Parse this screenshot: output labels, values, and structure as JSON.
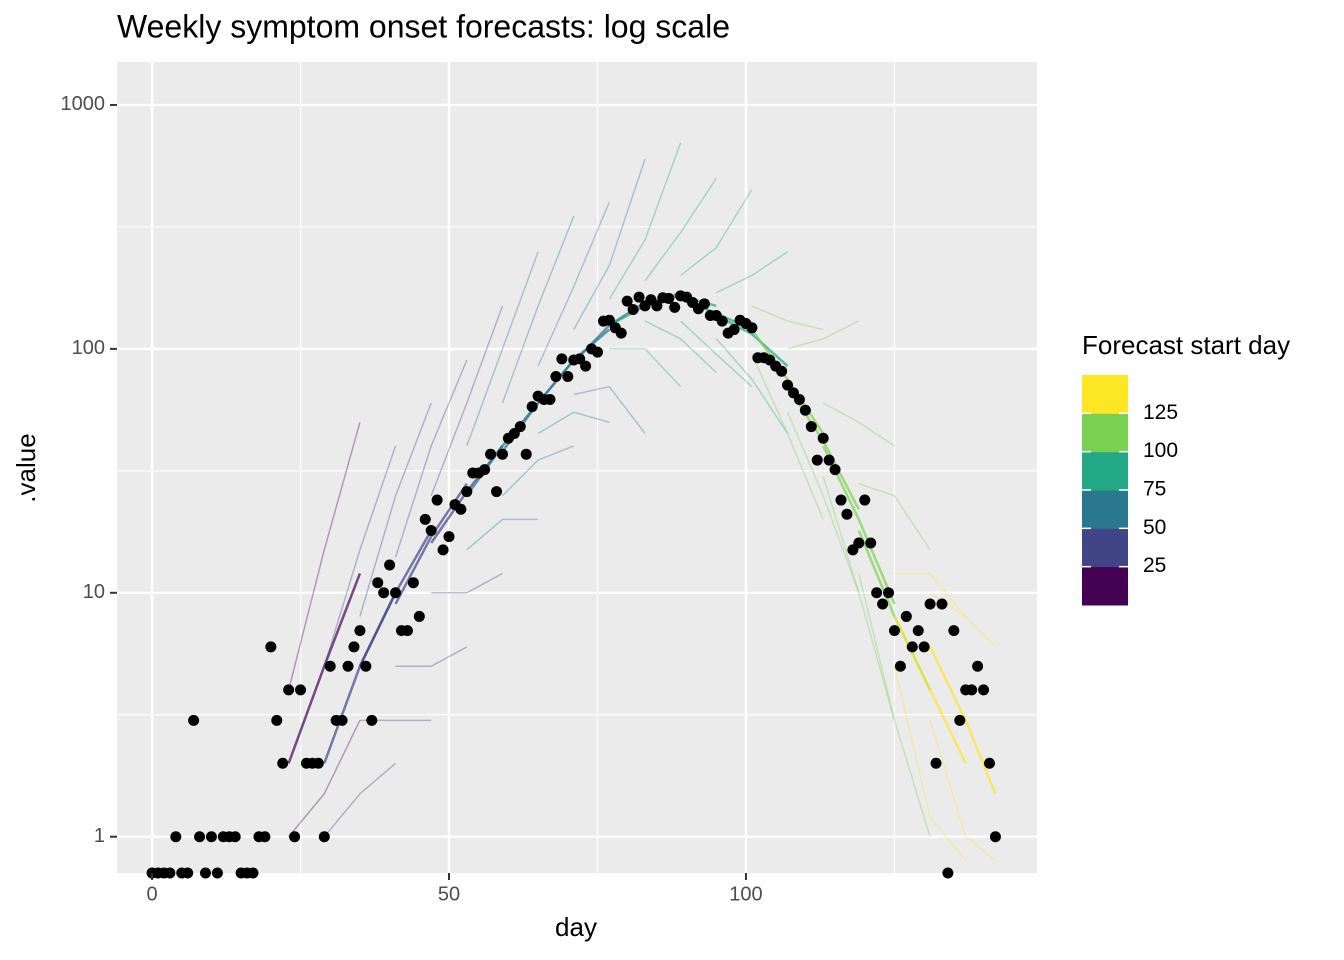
{
  "chart_data": {
    "type": "scatter",
    "title": "Weekly symptom onset forecasts: log scale",
    "x_label": "day",
    "y_label": ".value",
    "ylog": true,
    "grid": true,
    "xlim": [
      -5.9,
      149
    ],
    "ylim": [
      0.71,
      1500
    ],
    "xticks": [
      0,
      50,
      100
    ],
    "xminor": [
      25,
      75,
      125
    ],
    "yticks": [
      1,
      10,
      100,
      1000
    ],
    "yminor": [
      3.162,
      31.62,
      316.2
    ],
    "point_color": "#000000",
    "x": [
      0,
      1,
      2,
      3,
      4,
      5,
      6,
      7,
      8,
      9,
      10,
      11,
      12,
      13,
      14,
      15,
      16,
      17,
      18,
      19,
      20,
      21,
      22,
      23,
      24,
      25,
      26,
      27,
      28,
      29,
      30,
      31,
      32,
      33,
      34,
      35,
      36,
      37,
      38,
      39,
      40,
      41,
      42,
      43,
      44,
      45,
      46,
      47,
      48,
      49,
      50,
      51,
      52,
      53,
      54,
      55,
      56,
      57,
      58,
      59,
      60,
      61,
      62,
      63,
      64,
      65,
      66,
      67,
      68,
      69,
      70,
      71,
      72,
      73,
      74,
      75,
      76,
      77,
      78,
      79,
      80,
      81,
      82,
      83,
      84,
      85,
      86,
      87,
      88,
      89,
      90,
      91,
      92,
      93,
      94,
      95,
      96,
      97,
      98,
      99,
      100,
      101,
      102,
      103,
      104,
      105,
      106,
      107,
      108,
      109,
      110,
      111,
      112,
      113,
      114,
      115,
      116,
      117,
      118,
      119,
      120,
      121,
      122,
      123,
      124,
      125,
      126,
      127,
      128,
      129,
      130,
      131,
      132,
      133,
      134,
      135,
      136,
      137,
      138,
      139,
      140,
      141,
      142
    ],
    "values": [
      0,
      0,
      0,
      0,
      1,
      0,
      0,
      3,
      1,
      0,
      1,
      0,
      1,
      1,
      1,
      0,
      0,
      0,
      1,
      1,
      6,
      3,
      2,
      4,
      1,
      4,
      2,
      2,
      2,
      1,
      5,
      3,
      3,
      5,
      6,
      7,
      5,
      3,
      11,
      10,
      13,
      10,
      7,
      7,
      11,
      8,
      20,
      18,
      24,
      15,
      17,
      23,
      22,
      26,
      31,
      31,
      32,
      37,
      26,
      37,
      43,
      45,
      48,
      37,
      58,
      64,
      62,
      62,
      77,
      91,
      77,
      90,
      91,
      85,
      100,
      97,
      130,
      131,
      122,
      116,
      157,
      145,
      163,
      150,
      159,
      150,
      162,
      161,
      148,
      165,
      163,
      155,
      146,
      153,
      137,
      137,
      130,
      116,
      120,
      131,
      127,
      122,
      92,
      92,
      90,
      85,
      81,
      71,
      66,
      62,
      56,
      48,
      35,
      43,
      35,
      32,
      24,
      21,
      15,
      16,
      24,
      16,
      10,
      9,
      10,
      7,
      5,
      8,
      6,
      7,
      6,
      9,
      2,
      9,
      0,
      7,
      3,
      4,
      4,
      5,
      4,
      2,
      1
    ],
    "colorbar": {
      "title": "Forecast start day",
      "breaks": [
        25,
        50,
        75,
        100,
        125
      ],
      "colors": [
        "#440154",
        "#414487",
        "#2A788E",
        "#22A884",
        "#7AD151",
        "#FDE725"
      ]
    },
    "forecasts": [
      {
        "start": 23,
        "x": [
          23,
          29,
          35
        ],
        "low": [
          1,
          1.5,
          3
        ],
        "median": [
          2,
          5,
          12
        ],
        "high": [
          4,
          15,
          50
        ]
      },
      {
        "start": 29,
        "x": [
          29,
          35,
          41
        ],
        "low": [
          1,
          1.5,
          2
        ],
        "median": [
          2,
          5,
          10
        ],
        "high": [
          5,
          15,
          40
        ]
      },
      {
        "start": 35,
        "x": [
          35,
          41,
          47
        ],
        "low": [
          3,
          3,
          3
        ],
        "median": [
          5,
          10,
          18
        ],
        "high": [
          8,
          25,
          60
        ]
      },
      {
        "start": 41,
        "x": [
          41,
          47,
          53
        ],
        "low": [
          5,
          5,
          6
        ],
        "median": [
          9,
          17,
          28
        ],
        "high": [
          14,
          40,
          90
        ]
      },
      {
        "start": 47,
        "x": [
          47,
          53,
          59
        ],
        "low": [
          10,
          10,
          12
        ],
        "median": [
          16,
          26,
          40
        ],
        "high": [
          25,
          60,
          150
        ]
      },
      {
        "start": 53,
        "x": [
          53,
          59,
          65
        ],
        "low": [
          15,
          20,
          20
        ],
        "median": [
          25,
          40,
          60
        ],
        "high": [
          40,
          100,
          250
        ]
      },
      {
        "start": 59,
        "x": [
          59,
          65,
          71
        ],
        "low": [
          25,
          35,
          40
        ],
        "median": [
          38,
          60,
          90
        ],
        "high": [
          60,
          150,
          350
        ]
      },
      {
        "start": 65,
        "x": [
          65,
          71,
          77
        ],
        "low": [
          45,
          55,
          50
        ],
        "median": [
          60,
          90,
          120
        ],
        "high": [
          85,
          180,
          400
        ]
      },
      {
        "start": 71,
        "x": [
          71,
          77,
          83
        ],
        "low": [
          65,
          70,
          45
        ],
        "median": [
          88,
          125,
          155
        ],
        "high": [
          120,
          220,
          600
        ]
      },
      {
        "start": 77,
        "x": [
          77,
          83,
          89
        ],
        "low": [
          100,
          100,
          70
        ],
        "median": [
          125,
          150,
          170
        ],
        "high": [
          160,
          280,
          700
        ]
      },
      {
        "start": 83,
        "x": [
          83,
          89,
          95
        ],
        "low": [
          130,
          110,
          80
        ],
        "median": [
          155,
          165,
          150
        ],
        "high": [
          190,
          300,
          500
        ]
      },
      {
        "start": 89,
        "x": [
          89,
          95,
          101
        ],
        "low": [
          130,
          95,
          70
        ],
        "median": [
          160,
          140,
          120
        ],
        "high": [
          200,
          260,
          450
        ]
      },
      {
        "start": 95,
        "x": [
          95,
          101,
          107
        ],
        "low": [
          110,
          75,
          45
        ],
        "median": [
          137,
          115,
          85
        ],
        "high": [
          170,
          200,
          250
        ]
      },
      {
        "start": 101,
        "x": [
          101,
          107,
          113
        ],
        "low": [
          95,
          45,
          20
        ],
        "median": [
          120,
          75,
          45
        ],
        "high": [
          150,
          130,
          120
        ]
      },
      {
        "start": 107,
        "x": [
          107,
          113,
          119
        ],
        "low": [
          55,
          25,
          10
        ],
        "median": [
          70,
          42,
          22
        ],
        "high": [
          100,
          110,
          130
        ]
      },
      {
        "start": 113,
        "x": [
          113,
          119,
          125
        ],
        "low": [
          30,
          10,
          3
        ],
        "median": [
          40,
          20,
          9
        ],
        "high": [
          60,
          50,
          40
        ]
      },
      {
        "start": 119,
        "x": [
          119,
          125,
          131
        ],
        "low": [
          12,
          3,
          1
        ],
        "median": [
          18,
          8,
          4
        ],
        "high": [
          28,
          25,
          15
        ]
      },
      {
        "start": 125,
        "x": [
          125,
          131,
          137
        ],
        "low": [
          5,
          1.2,
          0.8
        ],
        "median": [
          8,
          4,
          2
        ],
        "high": [
          12,
          12,
          8
        ]
      },
      {
        "start": 131,
        "x": [
          131,
          137,
          142
        ],
        "low": [
          3,
          1,
          0.8
        ],
        "median": [
          6,
          3,
          1.5
        ],
        "high": [
          10,
          8,
          6
        ]
      }
    ]
  }
}
